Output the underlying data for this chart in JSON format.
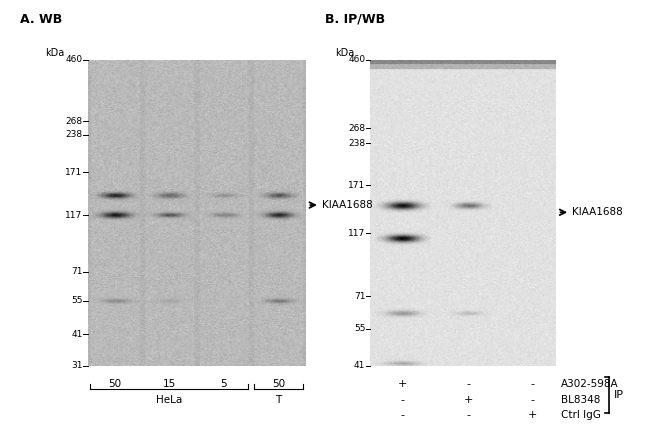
{
  "panel_A_title": "A. WB",
  "panel_B_title": "B. IP/WB",
  "kda_labels_A": [
    460,
    268,
    238,
    171,
    117,
    71,
    55,
    41,
    31
  ],
  "kda_labels_B": [
    460,
    268,
    238,
    171,
    117,
    71,
    55,
    41
  ],
  "kda_min_A": 31,
  "kda_max_A": 460,
  "kda_min_B": 41,
  "kda_max_B": 460,
  "label_KIAA1688": "KIAA1688",
  "panel_A_lane_labels": [
    "50",
    "15",
    "5",
    "50"
  ],
  "panel_A_group_labels": [
    "HeLa",
    "T"
  ],
  "panel_B_rows": [
    {
      "signs": [
        "+",
        "-",
        "-"
      ],
      "label": "A302-598A"
    },
    {
      "signs": [
        "-",
        "+",
        "-"
      ],
      "label": "BL8348"
    },
    {
      "signs": [
        "-",
        "-",
        "+"
      ],
      "label": "Ctrl IgG"
    }
  ],
  "panel_B_xlabel_IP": "IP",
  "bg_color": "#ffffff"
}
